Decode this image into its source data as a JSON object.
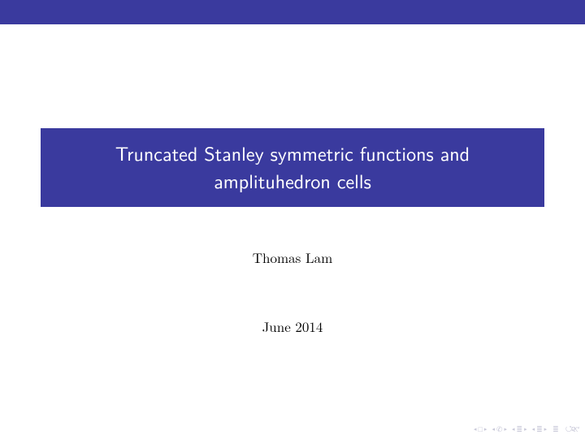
{
  "colors": {
    "theme": "#3a3a9e",
    "background": "#ffffff",
    "text": "#000000",
    "nav_faded": "#c8c8d8"
  },
  "slide": {
    "title_line1": "Truncated Stanley symmetric functions and",
    "title_line2": "amplituhedron cells",
    "author": "Thomas Lam",
    "date": "June 2014"
  },
  "nav": {
    "first_back": "◂",
    "first_sym": "□",
    "first_fwd": "▸",
    "frame_back": "◂",
    "frame_sym": "✆",
    "frame_fwd": "▸",
    "sub_back": "◂",
    "sub_sym": "≣",
    "sub_fwd": "▸",
    "sec_back": "◂",
    "sec_sym": "≣",
    "sec_fwd": "▸",
    "appendix": "≣",
    "undo": "↺૨୯"
  }
}
